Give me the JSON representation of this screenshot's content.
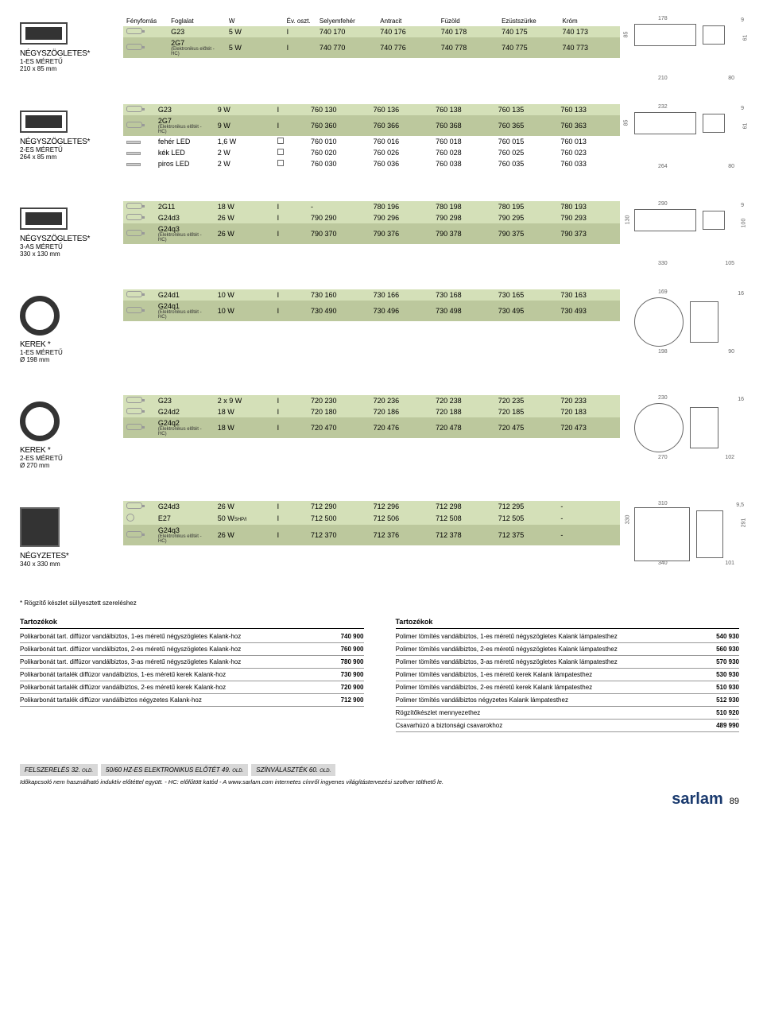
{
  "sections": [
    {
      "name": "NÉGYSZÖGLETES*",
      "sub1": "1-ES MÉRETŰ",
      "sub2": "210 x 85 mm",
      "imgtype": "rect",
      "header": [
        "Fényforrás",
        "Foglalat",
        "W",
        "Év. oszt.",
        "Selyemfehér",
        "Antracit",
        "Füzöld",
        "Ezüstszürke",
        "Króm"
      ],
      "rows": [
        {
          "icon": "lamp",
          "lamp": "G23",
          "w": "5 W",
          "cls": "I",
          "v": [
            "740 170",
            "740 176",
            "740 178",
            "740 175",
            "740 173"
          ],
          "cssClass": "row-green"
        },
        {
          "icon": "lamp",
          "lamp": "2G7",
          "hc": "(Elektronikus előtét - HC)",
          "w": "5 W",
          "cls": "I",
          "v": [
            "740 770",
            "740 776",
            "740 778",
            "740 775",
            "740 773"
          ],
          "cssClass": "row-dark"
        }
      ],
      "dim": {
        "w": "178",
        "h": "9",
        "side": "85",
        "side2": "61",
        "bot1": "210",
        "bot2": "80"
      }
    },
    {
      "name": "NÉGYSZÖGLETES*",
      "sub1": "2-ES MÉRETŰ",
      "sub2": "264 x 85 mm",
      "imgtype": "rect",
      "rows": [
        {
          "icon": "lamp",
          "lamp": "G23",
          "w": "9 W",
          "cls": "I",
          "v": [
            "760 130",
            "760 136",
            "760 138",
            "760 135",
            "760 133"
          ],
          "cssClass": "row-green"
        },
        {
          "icon": "lamp",
          "lamp": "2G7",
          "hc": "(Elektronikus előtét - HC)",
          "w": "9 W",
          "cls": "I",
          "v": [
            "760 360",
            "760 366",
            "760 368",
            "760 365",
            "760 363"
          ],
          "cssClass": "row-dark"
        },
        {
          "icon": "led",
          "lamp": "fehér LED",
          "w": "1,6 W",
          "cls": "□",
          "v": [
            "760 010",
            "760 016",
            "760 018",
            "760 015",
            "760 013"
          ]
        },
        {
          "icon": "led",
          "lamp": "kék LED",
          "w": "2 W",
          "cls": "□",
          "v": [
            "760 020",
            "760 026",
            "760 028",
            "760 025",
            "760 023"
          ]
        },
        {
          "icon": "led",
          "lamp": "piros LED",
          "w": "2 W",
          "cls": "□",
          "v": [
            "760 030",
            "760 036",
            "760 038",
            "760 035",
            "760 033"
          ]
        }
      ],
      "dim": {
        "w": "232",
        "h": "9",
        "side": "85",
        "side2": "61",
        "bot1": "264",
        "bot2": "80"
      }
    },
    {
      "name": "NÉGYSZÖGLETES*",
      "sub1": "3-AS MÉRETŰ",
      "sub2": "330 x 130 mm",
      "imgtype": "rect",
      "rows": [
        {
          "icon": "lamp",
          "lamp": "2G11",
          "w": "18 W",
          "cls": "I",
          "v": [
            "-",
            "780 196",
            "780 198",
            "780 195",
            "780 193"
          ],
          "cssClass": "row-green"
        },
        {
          "icon": "lamp",
          "lamp": "G24d3",
          "w": "26 W",
          "cls": "I",
          "v": [
            "790 290",
            "790 296",
            "790 298",
            "790 295",
            "790 293"
          ],
          "cssClass": "row-green"
        },
        {
          "icon": "lamp",
          "lamp": "G24q3",
          "hc": "(Elektronikus előtét - HC)",
          "w": "26 W",
          "cls": "I",
          "v": [
            "790 370",
            "790 376",
            "790 378",
            "790 375",
            "790 373"
          ],
          "cssClass": "row-dark"
        }
      ],
      "dim": {
        "w": "290",
        "h": "9",
        "side": "130",
        "side2": "100",
        "bot1": "330",
        "bot2": "105"
      }
    },
    {
      "name": "KEREK *",
      "sub1": "1-ES MÉRETŰ",
      "sub2": "Ø 198 mm",
      "imgtype": "circle",
      "rows": [
        {
          "icon": "lamp",
          "lamp": "G24d1",
          "w": "10 W",
          "cls": "I",
          "v": [
            "730 160",
            "730 166",
            "730 168",
            "730 165",
            "730 163"
          ],
          "cssClass": "row-green"
        },
        {
          "icon": "lamp",
          "lamp": "G24q1",
          "hc": "(Elektronikus előtét - HC)",
          "w": "10 W",
          "cls": "I",
          "v": [
            "730 490",
            "730 496",
            "730 498",
            "730 495",
            "730 493"
          ],
          "cssClass": "row-dark"
        }
      ],
      "dim": {
        "w": "169",
        "h": "16",
        "bot1": "198",
        "bot2": "90",
        "circle": true
      }
    },
    {
      "name": "KEREK *",
      "sub1": "2-ES MÉRETŰ",
      "sub2": "Ø 270 mm",
      "imgtype": "circle",
      "rows": [
        {
          "icon": "lamp",
          "lamp": "G23",
          "w": "2 x 9 W",
          "cls": "I",
          "v": [
            "720 230",
            "720 236",
            "720 238",
            "720 235",
            "720 233"
          ],
          "cssClass": "row-green"
        },
        {
          "icon": "lamp",
          "lamp": "G24d2",
          "w": "18 W",
          "cls": "I",
          "v": [
            "720 180",
            "720 186",
            "720 188",
            "720 185",
            "720 183"
          ],
          "cssClass": "row-green"
        },
        {
          "icon": "lamp",
          "lamp": "G24q2",
          "hc": "(Elektronikus előtét - HC)",
          "w": "18 W",
          "cls": "I",
          "v": [
            "720 470",
            "720 476",
            "720 478",
            "720 475",
            "720 473"
          ],
          "cssClass": "row-dark"
        }
      ],
      "dim": {
        "w": "230",
        "h": "16",
        "bot1": "270",
        "bot2": "102",
        "circle": true
      }
    },
    {
      "name": "NÉGYZETES*",
      "sub1": "",
      "sub2": "340 x 330 mm",
      "imgtype": "square",
      "rows": [
        {
          "icon": "lamp",
          "lamp": "G24d3",
          "w": "26 W",
          "cls": "I",
          "v": [
            "712 290",
            "712 296",
            "712 298",
            "712 295",
            "-"
          ],
          "cssClass": "row-green"
        },
        {
          "icon": "bulb",
          "lamp": "E27",
          "w": "50 W",
          "wsub": "SHP/I",
          "cls": "I",
          "v": [
            "712 500",
            "712 506",
            "712 508",
            "712 505",
            "-"
          ],
          "cssClass": "row-green"
        },
        {
          "icon": "lamp",
          "lamp": "G24q3",
          "hc": "(Elektronikus előtét - HC)",
          "w": "26 W",
          "cls": "I",
          "v": [
            "712 370",
            "712 376",
            "712 378",
            "712 375",
            "-"
          ],
          "cssClass": "row-dark"
        }
      ],
      "dim": {
        "w": "310",
        "h": "9,5",
        "side": "330",
        "side2": "291",
        "bot1": "340",
        "bot2": "101",
        "square": true
      }
    }
  ],
  "footnote": "* Rögzítő készlet süllyesztett szereléshez",
  "accLeft": {
    "title": "Tartozékok",
    "rows": [
      {
        "t": "Polikarbonát tart. diffúzor vandálbiztos, 1-es méretű négyszögletes Kalank-hoz",
        "c": "740 900"
      },
      {
        "t": "Polikarbonát tart. diffúzor vandálbiztos, 2-es méretű négyszögletes Kalank-hoz",
        "c": "760 900"
      },
      {
        "t": "Polikarbonát tart. diffúzor vandálbiztos, 3-as méretű négyszögletes Kalank-hoz",
        "c": "780 900"
      },
      {
        "t": "Polikarbonát tartalék diffúzor vandálbiztos, 1-es méretű kerek Kalank-hoz",
        "c": "730 900"
      },
      {
        "t": "Polikarbonát tartalék diffúzor vandálbiztos, 2-es méretű kerek Kalank-hoz",
        "c": "720 900"
      },
      {
        "t": "Polikarbonát tartalék diffúzor vandálbiztos négyzetes Kalank-hoz",
        "c": "712 900"
      }
    ]
  },
  "accRight": {
    "title": "Tartozékok",
    "rows": [
      {
        "t": "Polimer tömítés vandálbiztos, 1-es méretű négyszögletes Kalank lámpatesthez",
        "c": "540 930"
      },
      {
        "t": "Polimer tömítés vandálbiztos, 2-es méretű négyszögletes Kalank lámpatesthez",
        "c": "560 930"
      },
      {
        "t": "Polimer tömítés vandálbiztos, 3-as méretű négyszögletes Kalank lámpatesthez",
        "c": "570 930"
      },
      {
        "t": "Polimer tömítés vandálbiztos, 1-es méretű kerek Kalank lámpatesthez",
        "c": "530 930"
      },
      {
        "t": "Polimer tömítés vandálbiztos, 2-es méretű kerek Kalank lámpatesthez",
        "c": "510 930"
      },
      {
        "t": "Polimer tömítés vandálbiztos négyzetes Kalank lámpatesthez",
        "c": "512 930"
      },
      {
        "t": "Rögzítőkészlet mennyezethez",
        "c": "510 920"
      },
      {
        "t": "Csavarhúzó a biztonsági csavarokhoz",
        "c": "489 990"
      }
    ]
  },
  "bottom": {
    "seg1": "FELSZERELÉS 32. ",
    "seg1s": "OLD.",
    "seg2": "50/60 HZ-ES ELEKTRONIKUS ELŐTÉT 49. ",
    "seg2s": "OLD.",
    "seg3": "SZÍNVÁLASZTÉK 60. ",
    "seg3s": "OLD."
  },
  "bottomNote": "Időkapcsoló nem használható induktív előtéttel együtt. - HC: előfűtött katód - A www.sarlam.com internetes címről ingyenes világítástervezési szoftver tölthető le.",
  "brand": "sarlam",
  "pageNum": "89"
}
